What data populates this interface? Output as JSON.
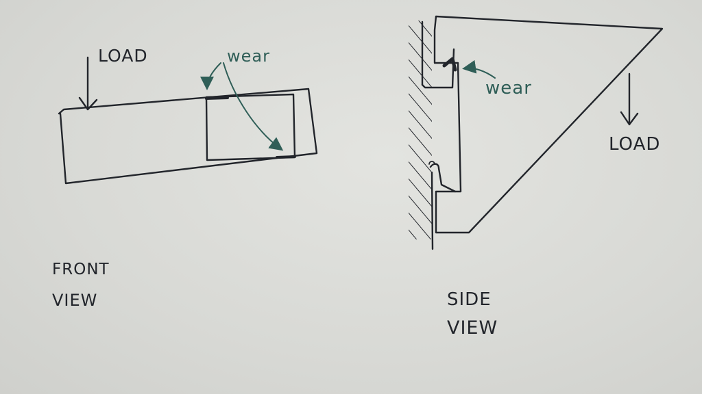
{
  "front_view": {
    "load_label": "LOAD",
    "wear_label": "wear",
    "caption_line1": "FRONT",
    "caption_line2": "VIEW"
  },
  "side_view": {
    "load_label": "LOAD",
    "wear_label": "wear",
    "caption_line1": "SIDE",
    "caption_line2": "VIEW"
  },
  "colors": {
    "ink": "#22252b",
    "annotation_green": "#2f5e57",
    "paper": "#dcddd9"
  }
}
